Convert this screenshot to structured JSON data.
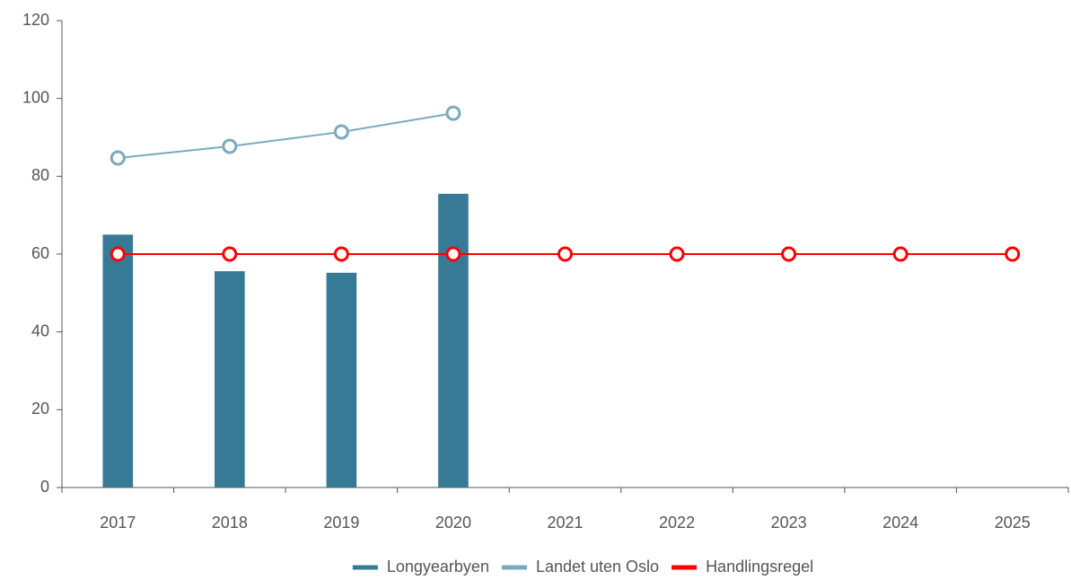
{
  "chart_data": {
    "type": "bar",
    "categories": [
      "2017",
      "2018",
      "2019",
      "2020",
      "2021",
      "2022",
      "2023",
      "2024",
      "2025"
    ],
    "series": [
      {
        "name": "Longyearbyen",
        "type": "bar",
        "color": "#367a96",
        "values": [
          65,
          55.6,
          55.2,
          75.5,
          null,
          null,
          null,
          null,
          null
        ]
      },
      {
        "name": "Landet uten Oslo",
        "type": "line",
        "color": "#7aaabd",
        "values": [
          84.7,
          87.7,
          91.4,
          96.2,
          null,
          null,
          null,
          null,
          null
        ]
      },
      {
        "name": "Handlingsregel",
        "type": "line",
        "color": "#ff0000",
        "values": [
          60,
          60,
          60,
          60,
          60,
          60,
          60,
          60,
          60
        ]
      }
    ],
    "ylim": [
      0,
      120
    ],
    "yticks": [
      0,
      20,
      40,
      60,
      80,
      100,
      120
    ],
    "grid": false,
    "legend": "bottom"
  }
}
